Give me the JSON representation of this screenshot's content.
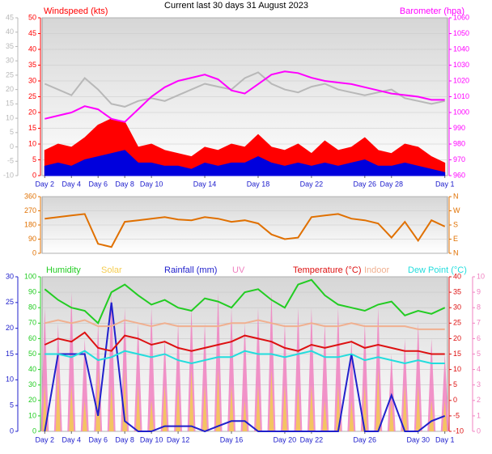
{
  "chart_data": [
    {
      "type": "line",
      "title": "Current last 30 days 31 August 2023",
      "x": [
        2,
        3,
        4,
        5,
        6,
        7,
        8,
        9,
        10,
        11,
        12,
        13,
        14,
        15,
        16,
        17,
        18,
        19,
        20,
        21,
        22,
        23,
        24,
        25,
        26,
        27,
        28,
        29,
        30,
        31,
        32
      ],
      "xlim": [
        1.8,
        32.2
      ],
      "xticks": [
        {
          "value": 2,
          "label": "Day 2"
        },
        {
          "value": 4,
          "label": "Day 4"
        },
        {
          "value": 6,
          "label": "Day 6"
        },
        {
          "value": 8,
          "label": "Day 8"
        },
        {
          "value": 10,
          "label": "Day 10"
        },
        {
          "value": 14,
          "label": "Day 14"
        },
        {
          "value": 18,
          "label": "Day 18"
        },
        {
          "value": 22,
          "label": "Day 22"
        },
        {
          "value": 26,
          "label": "Day 26"
        },
        {
          "value": 28,
          "label": "Day 28"
        },
        {
          "value": 32,
          "label": "Day 1"
        }
      ],
      "ylim": [
        0,
        50
      ],
      "yticks": [
        0,
        5,
        10,
        15,
        20,
        25,
        30,
        35,
        40,
        45,
        50
      ],
      "y2lim": [
        960,
        1060
      ],
      "y2ticks": [
        960,
        970,
        980,
        990,
        1000,
        1010,
        1020,
        1030,
        1040,
        1050,
        1060
      ],
      "y3lim": [
        -10,
        45
      ],
      "y3ticks": [
        -10,
        -5,
        0,
        5,
        10,
        15,
        20,
        25,
        30,
        35,
        40,
        45
      ],
      "grid": true,
      "series": [
        {
          "color": "#b8b8b8",
          "axis": "y3",
          "style": "line",
          "values": [
            22,
            20,
            18,
            24,
            20,
            15,
            14,
            16,
            17,
            16,
            18,
            20,
            22,
            21,
            20,
            24,
            26,
            22,
            20,
            19,
            21,
            22,
            20,
            19,
            18,
            19,
            20,
            17,
            16,
            15,
            16
          ]
        },
        {
          "name": "Windspeed (kts)",
          "color": "#ff0000",
          "axis": "y",
          "style": "area",
          "values": [
            8,
            10,
            9,
            12,
            16,
            18,
            17,
            9,
            10,
            8,
            7,
            6,
            9,
            8,
            10,
            9,
            13,
            9,
            8,
            10,
            7,
            11,
            8,
            9,
            12,
            8,
            7,
            10,
            9,
            6,
            4
          ]
        },
        {
          "color": "#0000dd",
          "axis": "y",
          "style": "area",
          "values": [
            3,
            4,
            3,
            5,
            6,
            7,
            8,
            4,
            4,
            3,
            3,
            2,
            4,
            3,
            4,
            4,
            6,
            4,
            3,
            4,
            3,
            4,
            3,
            4,
            5,
            3,
            3,
            4,
            3,
            2,
            1
          ]
        },
        {
          "name": "Barometer (hpa)",
          "color": "#ff00ff",
          "axis": "y2",
          "style": "line",
          "values": [
            996,
            998,
            1000,
            1004,
            1002,
            996,
            994,
            1002,
            1010,
            1016,
            1020,
            1022,
            1024,
            1021,
            1014,
            1012,
            1018,
            1024,
            1026,
            1025,
            1022,
            1020,
            1019,
            1018,
            1016,
            1014,
            1012,
            1011,
            1010,
            1008,
            1008
          ]
        }
      ]
    },
    {
      "type": "line",
      "x": [
        2,
        3,
        4,
        5,
        6,
        7,
        8,
        9,
        10,
        11,
        12,
        13,
        14,
        15,
        16,
        17,
        18,
        19,
        20,
        21,
        22,
        23,
        24,
        25,
        26,
        27,
        28,
        29,
        30,
        31,
        32
      ],
      "xlim": [
        1.8,
        32.2
      ],
      "ylim": [
        0,
        360
      ],
      "yticks": [
        0,
        90,
        180,
        270,
        360
      ],
      "y2lim": [
        0,
        360
      ],
      "y2ticks": [
        {
          "value": 0,
          "label": "N"
        },
        {
          "value": 90,
          "label": "E"
        },
        {
          "value": 180,
          "label": "S"
        },
        {
          "value": 270,
          "label": "W"
        },
        {
          "value": 360,
          "label": "N"
        }
      ],
      "grid": true,
      "series": [
        {
          "color": "#e07000",
          "axis": "y",
          "style": "line",
          "values": [
            220,
            230,
            240,
            250,
            60,
            40,
            200,
            210,
            220,
            230,
            215,
            210,
            230,
            220,
            200,
            210,
            190,
            120,
            90,
            100,
            230,
            240,
            250,
            220,
            210,
            190,
            100,
            200,
            80,
            210,
            170
          ]
        }
      ]
    },
    {
      "type": "line",
      "x": [
        2,
        3,
        4,
        5,
        6,
        7,
        8,
        9,
        10,
        11,
        12,
        13,
        14,
        15,
        16,
        17,
        18,
        19,
        20,
        21,
        22,
        23,
        24,
        25,
        26,
        27,
        28,
        29,
        30,
        31,
        32
      ],
      "xlim": [
        1.8,
        32.2
      ],
      "xticks": [
        {
          "value": 2,
          "label": "Day 2"
        },
        {
          "value": 4,
          "label": "Day 4"
        },
        {
          "value": 6,
          "label": "Day 6"
        },
        {
          "value": 8,
          "label": "Day 8"
        },
        {
          "value": 10,
          "label": "Day 10"
        },
        {
          "value": 12,
          "label": "Day 12"
        },
        {
          "value": 16,
          "label": "Day 16"
        },
        {
          "value": 20,
          "label": "Day 20"
        },
        {
          "value": 22,
          "label": "Day 22"
        },
        {
          "value": 26,
          "label": "Day 26"
        },
        {
          "value": 30,
          "label": "Day 30"
        },
        {
          "value": 32,
          "label": "Day 1"
        }
      ],
      "ylim": [
        0,
        100
      ],
      "yticks": [
        0,
        10,
        20,
        30,
        40,
        50,
        60,
        70,
        80,
        90,
        100
      ],
      "y2lim": [
        -10,
        40
      ],
      "y2ticks": [
        -10,
        -5,
        0,
        5,
        10,
        15,
        20,
        25,
        30,
        35,
        40
      ],
      "y3lim": [
        0,
        30
      ],
      "y3ticks": [
        0,
        5,
        10,
        15,
        20,
        25,
        30
      ],
      "y4lim": [
        0,
        10
      ],
      "y4ticks": [
        0,
        1,
        2,
        3,
        4,
        5,
        6,
        7,
        8,
        9,
        10
      ],
      "grid": true,
      "series": [
        {
          "name": "UV",
          "color": "#f080c0",
          "axis": "y4",
          "style": "spike",
          "values": [
            8,
            7,
            9,
            6,
            7,
            9,
            8,
            7,
            8,
            6,
            7,
            8,
            7,
            9,
            8,
            7,
            8,
            9,
            7,
            8,
            8,
            7,
            8,
            6,
            7,
            8,
            5,
            6,
            7,
            6,
            5
          ]
        },
        {
          "name": "Solar",
          "color": "#f5cc50",
          "axis": "y4",
          "style": "spike",
          "values": [
            3,
            4,
            3,
            2,
            4,
            3,
            4,
            3,
            2,
            3,
            3,
            4,
            3,
            4,
            3,
            2,
            3,
            4,
            3,
            3,
            3,
            2,
            3,
            2,
            3,
            4,
            2,
            3,
            3,
            2,
            2
          ]
        },
        {
          "name": "Humidity",
          "color": "#22cc22",
          "axis": "y",
          "style": "line",
          "values": [
            92,
            85,
            80,
            78,
            70,
            90,
            95,
            88,
            82,
            85,
            80,
            78,
            86,
            84,
            80,
            90,
            92,
            85,
            80,
            95,
            98,
            88,
            82,
            80,
            78,
            82,
            84,
            75,
            78,
            76,
            80
          ]
        },
        {
          "name": "Rainfall (mm)",
          "color": "#2020cc",
          "axis": "y3",
          "style": "line",
          "values": [
            0,
            15,
            15,
            15,
            3,
            25,
            2,
            0,
            0,
            1,
            1,
            1,
            0,
            1,
            2,
            2,
            0,
            0,
            0,
            0,
            0,
            0,
            0,
            15,
            0,
            0,
            7,
            0,
            0,
            2,
            3
          ]
        },
        {
          "name": "Temperature (°C)",
          "color": "#dd1111",
          "axis": "y2",
          "style": "line",
          "values": [
            18,
            20,
            19,
            22,
            17,
            16,
            21,
            20,
            18,
            19,
            17,
            16,
            17,
            18,
            19,
            21,
            20,
            19,
            17,
            16,
            18,
            17,
            18,
            19,
            17,
            18,
            17,
            16,
            16,
            15,
            15
          ]
        },
        {
          "name": "Indoor",
          "color": "#f0b090",
          "axis": "y2",
          "style": "line",
          "values": [
            25,
            26,
            25,
            26,
            24,
            24,
            26,
            25,
            24,
            25,
            24,
            24,
            24,
            24,
            25,
            25,
            26,
            25,
            24,
            24,
            25,
            24,
            24,
            25,
            24,
            24,
            24,
            24,
            23,
            23,
            23
          ]
        },
        {
          "name": "Dew Point (°C)",
          "color": "#22dddd",
          "axis": "y2",
          "style": "line",
          "values": [
            15,
            15,
            14,
            16,
            13,
            14,
            16,
            15,
            14,
            15,
            13,
            12,
            13,
            14,
            14,
            16,
            15,
            15,
            14,
            15,
            16,
            14,
            14,
            15,
            13,
            14,
            13,
            12,
            13,
            12,
            12
          ]
        }
      ]
    }
  ]
}
